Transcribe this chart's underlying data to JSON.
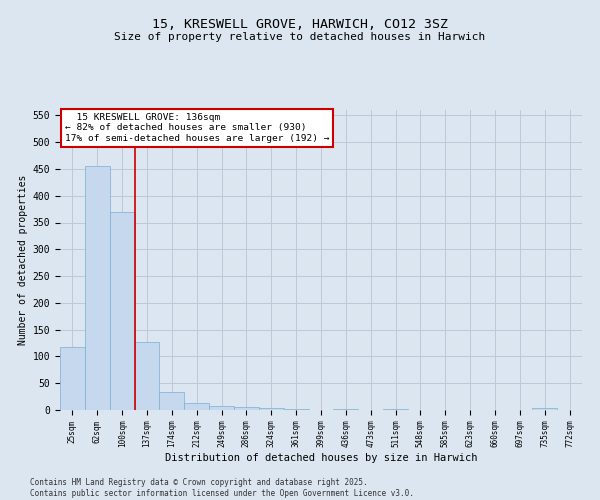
{
  "title": "15, KRESWELL GROVE, HARWICH, CO12 3SZ",
  "subtitle": "Size of property relative to detached houses in Harwich",
  "xlabel": "Distribution of detached houses by size in Harwich",
  "ylabel": "Number of detached properties",
  "footer_line1": "Contains HM Land Registry data © Crown copyright and database right 2025.",
  "footer_line2": "Contains public sector information licensed under the Open Government Licence v3.0.",
  "categories": [
    "25sqm",
    "62sqm",
    "100sqm",
    "137sqm",
    "174sqm",
    "212sqm",
    "249sqm",
    "286sqm",
    "324sqm",
    "361sqm",
    "399sqm",
    "436sqm",
    "473sqm",
    "511sqm",
    "548sqm",
    "585sqm",
    "623sqm",
    "660sqm",
    "697sqm",
    "735sqm",
    "772sqm"
  ],
  "values": [
    118,
    455,
    370,
    127,
    34,
    14,
    8,
    5,
    4,
    1,
    0,
    1,
    0,
    1,
    0,
    0,
    0,
    0,
    0,
    3,
    0
  ],
  "bar_color": "#c5d8ed",
  "bar_edge_color": "#7aafd4",
  "grid_color": "#c0c8d8",
  "background_color": "#dce6f0",
  "annotation_line1": "  15 KRESWELL GROVE: 136sqm",
  "annotation_line2": "← 82% of detached houses are smaller (930)",
  "annotation_line3": "17% of semi-detached houses are larger (192) →",
  "annotation_box_color": "#ffffff",
  "annotation_box_edge_color": "#cc0000",
  "vline_x_index": 2.5,
  "vline_color": "#cc0000",
  "ylim": [
    0,
    560
  ],
  "yticks": [
    0,
    50,
    100,
    150,
    200,
    250,
    300,
    350,
    400,
    450,
    500,
    550
  ]
}
